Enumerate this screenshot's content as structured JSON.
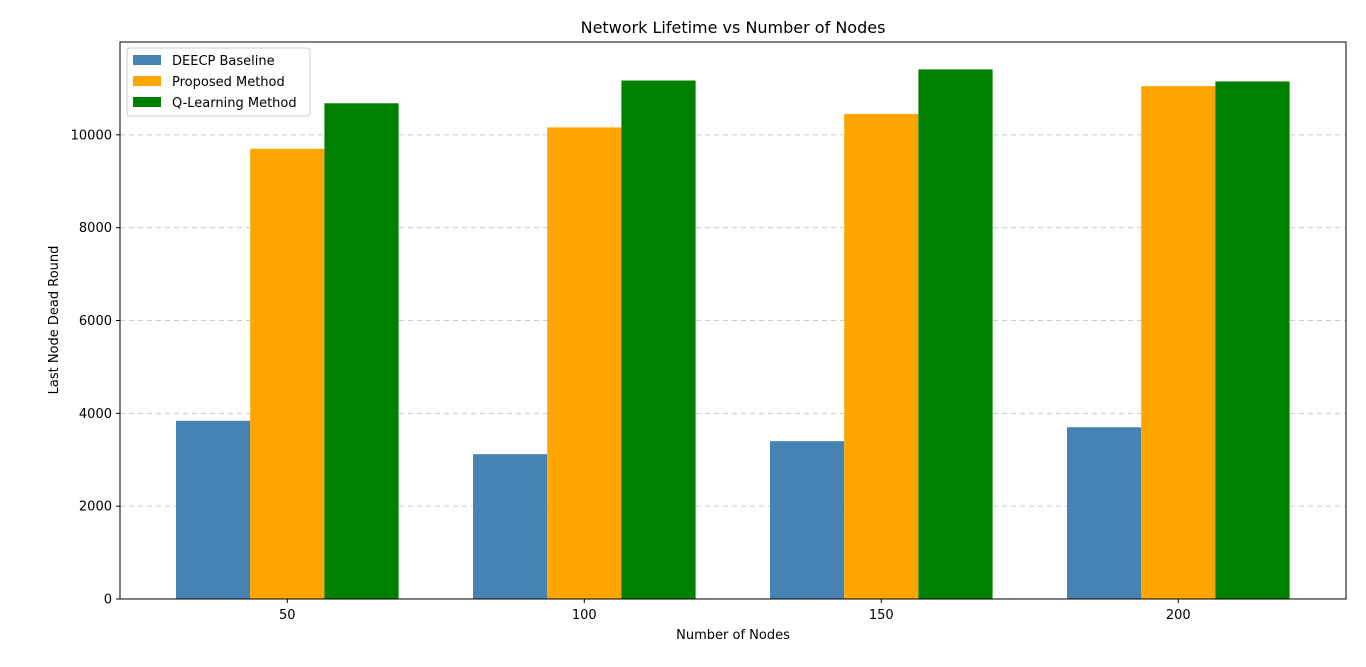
{
  "chart_data": {
    "type": "bar",
    "title": "Network Lifetime vs Number of Nodes",
    "xlabel": "Number of Nodes",
    "ylabel": "Last Node Dead Round",
    "categories": [
      "50",
      "100",
      "150",
      "200"
    ],
    "series": [
      {
        "name": "DEECP Baseline",
        "color": "#4682b4",
        "values": [
          3840,
          3120,
          3400,
          3700
        ]
      },
      {
        "name": "Proposed Method",
        "color": "#ffa500",
        "values": [
          9700,
          10160,
          10450,
          11050
        ]
      },
      {
        "name": "Q-Learning Method",
        "color": "#008000",
        "values": [
          10680,
          11170,
          11410,
          11150
        ]
      }
    ],
    "ylim": [
      0,
      12000
    ],
    "yticks": [
      0,
      2000,
      4000,
      6000,
      8000,
      10000
    ],
    "grid": "y-dashed",
    "legend_position": "top-left"
  }
}
